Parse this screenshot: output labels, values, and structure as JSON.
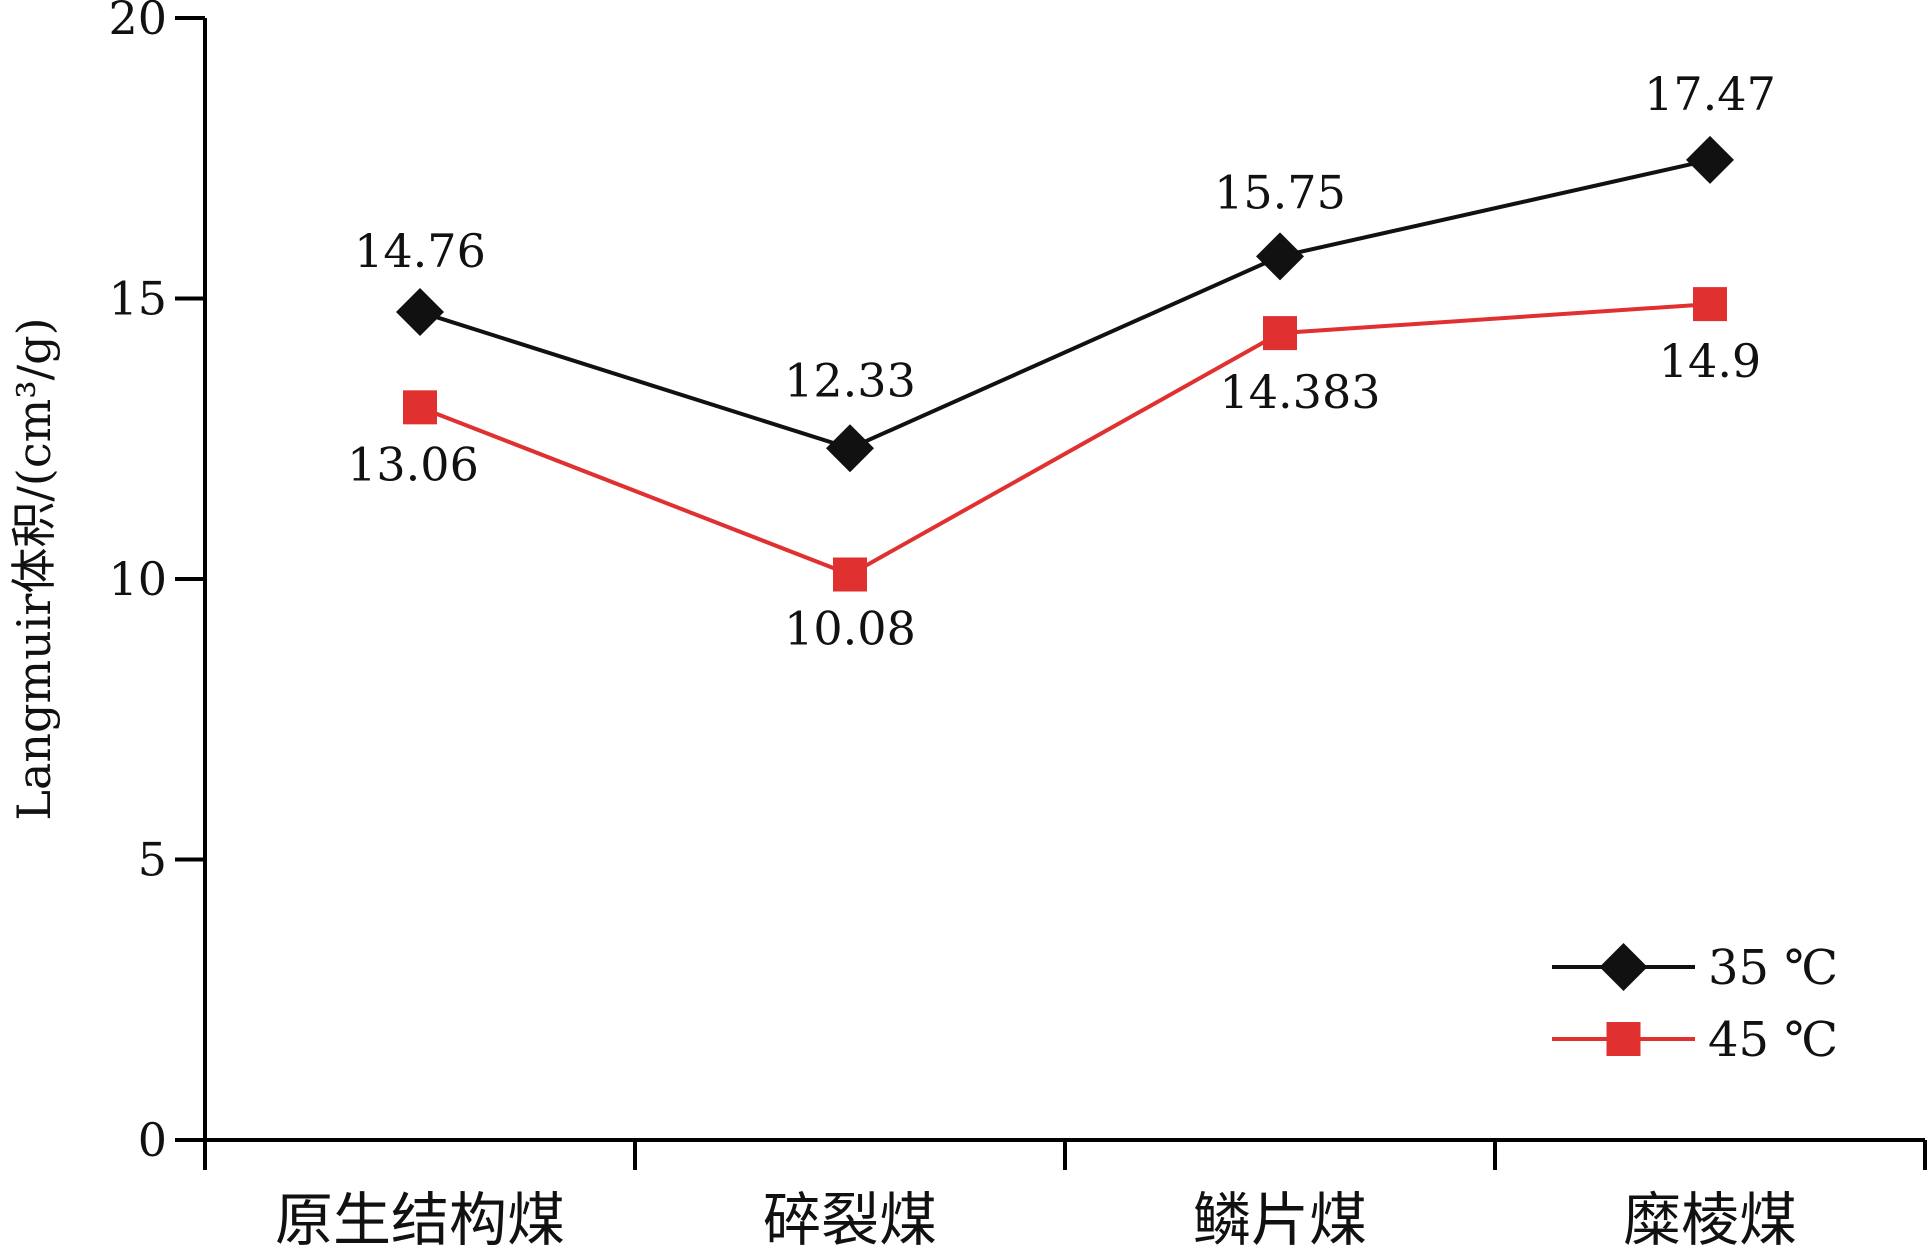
{
  "chart_data": {
    "type": "line",
    "title": "",
    "xlabel": "",
    "ylabel": "Langmuir体积/(cm³/g)",
    "categories": [
      "原生结构煤",
      "碎裂煤",
      "鳞片煤",
      "糜棱煤"
    ],
    "ylim": [
      0,
      20
    ],
    "yticks": [
      0,
      5,
      10,
      15,
      20
    ],
    "grid": false,
    "legend_position": "bottom-right",
    "series": [
      {
        "name": "35 ℃",
        "values": [
          14.76,
          12.33,
          15.75,
          17.47
        ],
        "labels": [
          "14.76",
          "12.33",
          "15.75",
          "17.47"
        ],
        "color": "#111111",
        "marker": "diamond"
      },
      {
        "name": "45 ℃",
        "values": [
          13.06,
          10.08,
          14.383,
          14.9
        ],
        "labels": [
          "13.06",
          "10.08",
          "14.383",
          "14.9"
        ],
        "color": "#e03030",
        "marker": "square"
      }
    ]
  }
}
